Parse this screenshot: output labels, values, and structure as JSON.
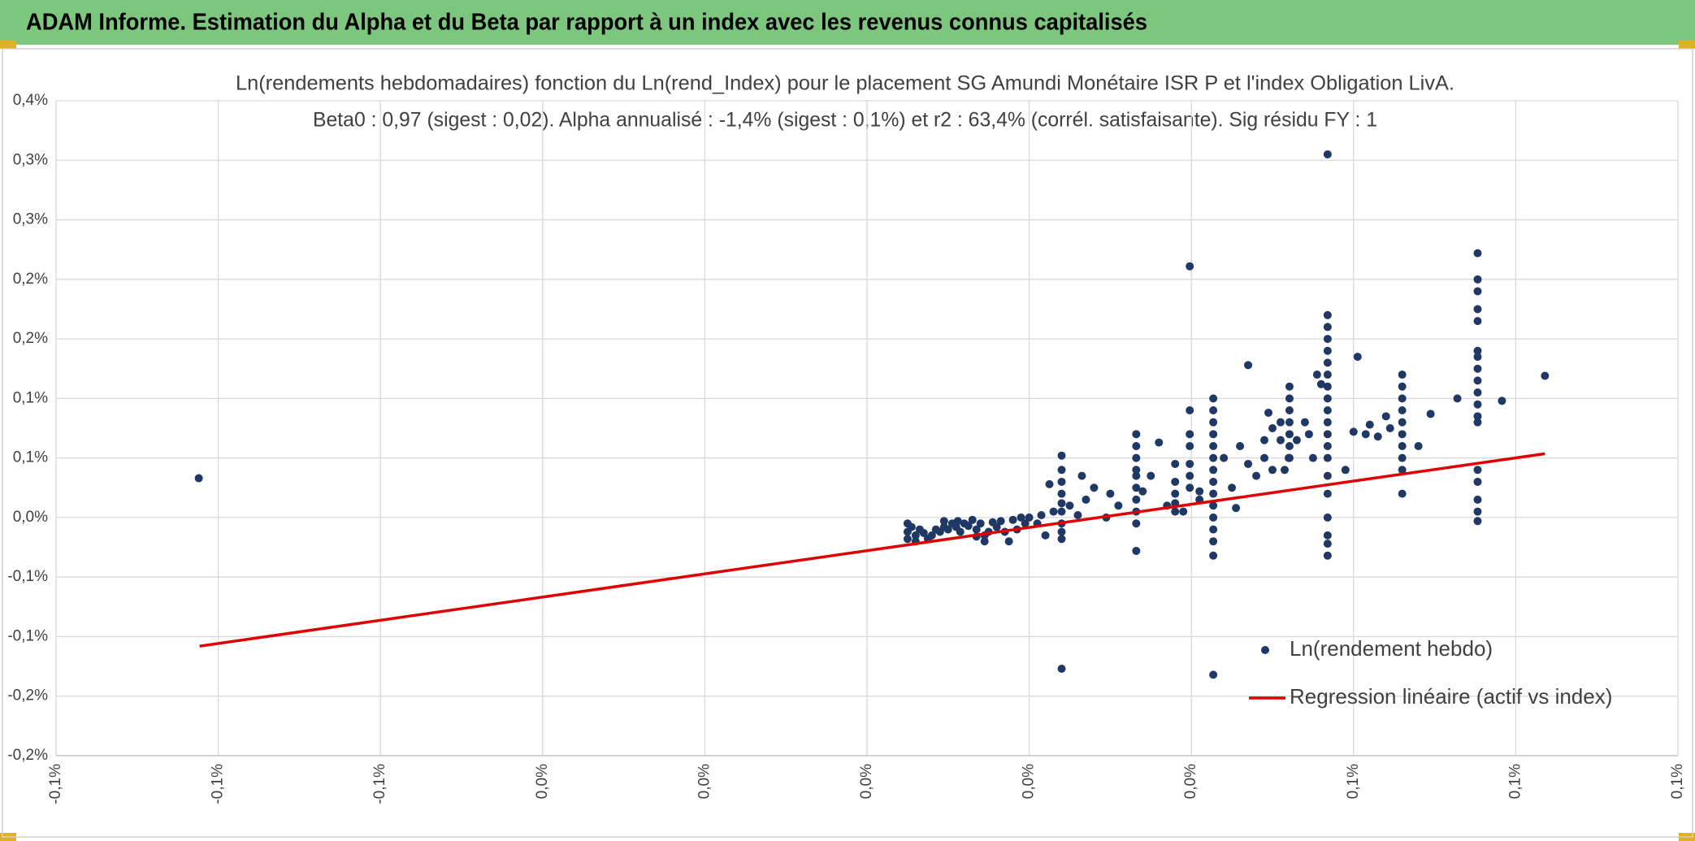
{
  "header": {
    "title": "ADAM Informe. Estimation du Alpha et du Beta par rapport à un index avec les revenus connus capitalisés"
  },
  "chart_data": {
    "type": "scatter",
    "title": "Ln(rendements hebdomadaires) fonction du Ln(rend_Index) pour le placement SG Amundi Monétaire ISR P et l'index Obligation LivA.",
    "subtitle": "Beta0 : 0,97 (sigest : 0,02). Alpha annualisé : -1,4% (sigest : 0,1%) et r2 : 63,4% (corrél. satisfaisante). Sig résidu FY : 1",
    "xlim": [
      -0.1,
      0.1
    ],
    "xticks": [
      {
        "value": -0.1,
        "label": "-0,1%"
      },
      {
        "value": -0.08,
        "label": "-0,1%"
      },
      {
        "value": -0.06,
        "label": "-0,1%"
      },
      {
        "value": -0.04,
        "label": "0,0%"
      },
      {
        "value": -0.02,
        "label": "0,0%"
      },
      {
        "value": 0,
        "label": "0,0%"
      },
      {
        "value": 0.02,
        "label": "0,0%"
      },
      {
        "value": 0.04,
        "label": "0,0%"
      },
      {
        "value": 0.06,
        "label": "0,1%"
      },
      {
        "value": 0.08,
        "label": "0,1%"
      },
      {
        "value": 0.1,
        "label": "0,1%"
      }
    ],
    "ylim": [
      -0.2,
      0.35
    ],
    "yticks": [
      {
        "value": -0.2,
        "label": "-0,2%"
      },
      {
        "value": -0.15,
        "label": "-0,2%"
      },
      {
        "value": -0.1,
        "label": "-0,1%"
      },
      {
        "value": -0.05,
        "label": "-0,1%"
      },
      {
        "value": 0,
        "label": "0,0%"
      },
      {
        "value": 0.05,
        "label": "0,1%"
      },
      {
        "value": 0.1,
        "label": "0,1%"
      },
      {
        "value": 0.15,
        "label": "0,2%"
      },
      {
        "value": 0.2,
        "label": "0,2%"
      },
      {
        "value": 0.25,
        "label": "0,3%"
      },
      {
        "value": 0.3,
        "label": "0,3%"
      },
      {
        "value": 0.35,
        "label": "0,4%"
      }
    ],
    "grid": true,
    "series": [
      {
        "name": "Ln(rendement hebdo)",
        "type": "scatter",
        "color": "#1f3864",
        "x": [
          -0.0824,
          0.005,
          0.005,
          0.005,
          0.0055,
          0.006,
          0.006,
          0.0065,
          0.007,
          0.0075,
          0.008,
          0.0085,
          0.009,
          0.0095,
          0.0095,
          0.01,
          0.0105,
          0.011,
          0.0112,
          0.0115,
          0.012,
          0.0125,
          0.013,
          0.0135,
          0.0135,
          0.014,
          0.0145,
          0.0145,
          0.015,
          0.0155,
          0.016,
          0.0165,
          0.017,
          0.0175,
          0.018,
          0.0185,
          0.019,
          0.0195,
          0.02,
          0.021,
          0.0215,
          0.022,
          0.0225,
          0.023,
          0.024,
          0.024,
          0.024,
          0.024,
          0.024,
          0.024,
          0.024,
          0.024,
          0.024,
          0.024,
          0.025,
          0.026,
          0.027,
          0.0265,
          0.028,
          0.0295,
          0.03,
          0.031,
          0.0332,
          0.0332,
          0.0332,
          0.0332,
          0.0332,
          0.0332,
          0.0332,
          0.0332,
          0.0332,
          0.0332,
          0.034,
          0.035,
          0.036,
          0.037,
          0.038,
          0.038,
          0.038,
          0.038,
          0.038,
          0.039,
          0.0398,
          0.0398,
          0.0398,
          0.0398,
          0.0398,
          0.0398,
          0.0398,
          0.041,
          0.041,
          0.0427,
          0.0427,
          0.0427,
          0.0427,
          0.0427,
          0.0427,
          0.0427,
          0.0427,
          0.0427,
          0.0427,
          0.0427,
          0.0427,
          0.0427,
          0.0427,
          0.0427,
          0.044,
          0.045,
          0.0455,
          0.046,
          0.047,
          0.047,
          0.048,
          0.049,
          0.049,
          0.0495,
          0.05,
          0.05,
          0.051,
          0.051,
          0.0515,
          0.052,
          0.053,
          0.054,
          0.055,
          0.0521,
          0.0521,
          0.0521,
          0.0521,
          0.0521,
          0.0521,
          0.0521,
          0.0545,
          0.0555,
          0.056,
          0.0568,
          0.0568,
          0.0568,
          0.0568,
          0.0568,
          0.0568,
          0.0568,
          0.0568,
          0.0568,
          0.0568,
          0.0568,
          0.0568,
          0.0568,
          0.0568,
          0.0568,
          0.0568,
          0.0568,
          0.0568,
          0.0568,
          0.0568,
          0.059,
          0.06,
          0.0605,
          0.0615,
          0.062,
          0.063,
          0.064,
          0.0645,
          0.066,
          0.066,
          0.066,
          0.066,
          0.066,
          0.066,
          0.066,
          0.066,
          0.066,
          0.066,
          0.068,
          0.0695,
          0.0753,
          0.0753,
          0.0753,
          0.0753,
          0.0753,
          0.0753,
          0.0753,
          0.0753,
          0.0753,
          0.0753,
          0.0753,
          0.0753,
          0.0753,
          0.0753,
          0.0753,
          0.0753,
          0.0753,
          0.0753,
          0.0728,
          0.0783,
          0.0836
        ],
        "values": [
          0.033,
          -0.005,
          -0.012,
          -0.018,
          -0.008,
          -0.015,
          -0.02,
          -0.01,
          -0.013,
          -0.018,
          -0.015,
          -0.01,
          -0.012,
          -0.008,
          -0.003,
          -0.01,
          -0.005,
          -0.008,
          -0.003,
          -0.012,
          -0.005,
          -0.007,
          -0.002,
          -0.01,
          -0.016,
          -0.005,
          -0.015,
          -0.02,
          -0.012,
          -0.004,
          -0.008,
          -0.003,
          -0.012,
          -0.02,
          -0.002,
          -0.01,
          0,
          -0.005,
          0,
          -0.005,
          0.002,
          -0.015,
          0.028,
          0.005,
          0.052,
          0.04,
          0.03,
          0.02,
          0.012,
          0.005,
          -0.005,
          -0.012,
          -0.018,
          -0.127,
          0.01,
          0.002,
          0.015,
          0.035,
          0.025,
          0,
          0.02,
          0.01,
          0.07,
          0.06,
          0.05,
          0.04,
          0.035,
          0.025,
          0.015,
          0.005,
          -0.005,
          -0.028,
          0.022,
          0.035,
          0.063,
          0.01,
          0.045,
          0.03,
          0.02,
          0.012,
          0.005,
          0.005,
          0.211,
          0.09,
          0.07,
          0.06,
          0.045,
          0.035,
          0.025,
          0.015,
          0.022,
          0.1,
          0.09,
          0.08,
          0.07,
          0.06,
          0.05,
          0.04,
          0.03,
          0.02,
          0.01,
          0,
          -0.01,
          -0.02,
          -0.032,
          -0.132,
          0.05,
          0.025,
          0.008,
          0.06,
          0.045,
          0.128,
          0.035,
          0.065,
          0.05,
          0.088,
          0.075,
          0.04,
          0.08,
          0.065,
          0.04,
          0.05,
          0.065,
          0.08,
          0.05,
          0.11,
          0.1,
          0.09,
          0.08,
          0.07,
          0.06,
          0.05,
          0.07,
          0.12,
          0.112,
          0.305,
          0.17,
          0.16,
          0.15,
          0.14,
          0.13,
          0.12,
          0.11,
          0.1,
          0.09,
          0.08,
          0.07,
          0.06,
          0.05,
          0.035,
          0.02,
          0,
          -0.015,
          -0.022,
          -0.032,
          0.04,
          0.072,
          0.135,
          0.07,
          0.078,
          0.068,
          0.085,
          0.075,
          0.12,
          0.11,
          0.1,
          0.09,
          0.08,
          0.07,
          0.06,
          0.05,
          0.04,
          0.02,
          0.06,
          0.087,
          0.222,
          0.2,
          0.19,
          0.175,
          0.165,
          0.14,
          0.135,
          0.125,
          0.115,
          0.105,
          0.095,
          0.085,
          0.08,
          0.04,
          0.03,
          0.015,
          0.005,
          -0.003,
          0.1,
          0.098,
          0.119
        ]
      },
      {
        "name": "Regression linéaire (actif vs index)",
        "type": "line",
        "color": "#e00000",
        "x": [
          -0.0823,
          0.0836
        ],
        "values": [
          -0.108,
          0.0536
        ]
      }
    ]
  }
}
